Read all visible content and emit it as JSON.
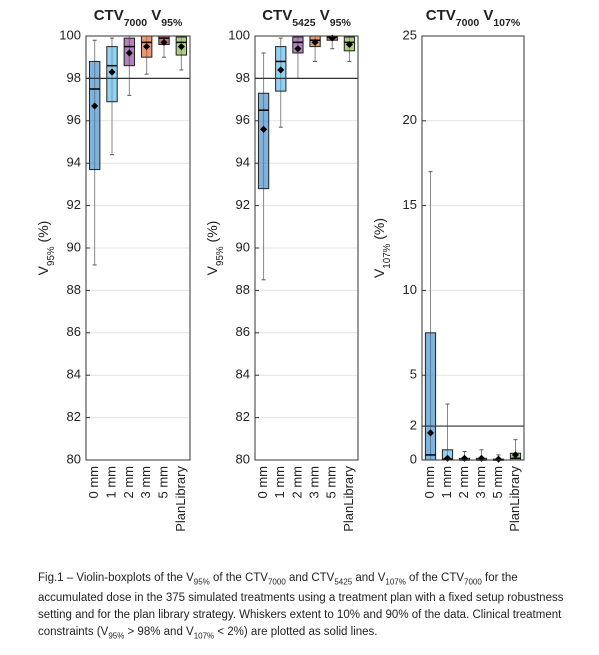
{
  "chart_data": [
    {
      "type": "box",
      "title": [
        "CTV",
        "7000",
        " V",
        "95%"
      ],
      "ylabel": [
        "V",
        "95%",
        " (%)"
      ],
      "categories": [
        "0 mm",
        "1 mm",
        "2 mm",
        "3 mm",
        "5 mm",
        "PlanLibrary"
      ],
      "colors": [
        "#2f7fc1",
        "#4db3e6",
        "#7e2f8e",
        "#d95319",
        "#a2142f",
        "#77ac30"
      ],
      "whislo": [
        89.2,
        94.4,
        97.2,
        98.2,
        99.0,
        98.4
      ],
      "q1": [
        93.7,
        96.9,
        98.6,
        99.0,
        99.6,
        99.1
      ],
      "median": [
        97.5,
        98.6,
        99.5,
        99.7,
        99.9,
        99.7
      ],
      "q3": [
        98.8,
        99.5,
        99.9,
        100,
        100,
        99.95
      ],
      "whishi": [
        99.8,
        99.9,
        100,
        100,
        100,
        100
      ],
      "mean": [
        96.7,
        98.3,
        99.2,
        99.5,
        99.7,
        99.5
      ],
      "hline": 98,
      "ylim": [
        80,
        100
      ],
      "yticks": [
        80,
        82,
        84,
        86,
        88,
        90,
        92,
        94,
        96,
        98,
        100
      ],
      "grid": true
    },
    {
      "type": "box",
      "title": [
        "CTV",
        "5425",
        " V",
        "95%"
      ],
      "ylabel": [
        "V",
        "95%",
        " (%)"
      ],
      "categories": [
        "0 mm",
        "1 mm",
        "2 mm",
        "3 mm",
        "5 mm",
        "PlanLibrary"
      ],
      "colors": [
        "#2f7fc1",
        "#4db3e6",
        "#7e2f8e",
        "#d95319",
        "#a2142f",
        "#77ac30"
      ],
      "whislo": [
        88.5,
        95.7,
        98.0,
        98.8,
        99.4,
        98.8
      ],
      "q1": [
        92.8,
        97.4,
        99.2,
        99.5,
        99.8,
        99.3
      ],
      "median": [
        96.5,
        98.8,
        99.7,
        99.8,
        99.95,
        99.7
      ],
      "q3": [
        97.3,
        99.5,
        99.95,
        100,
        100,
        99.95
      ],
      "whishi": [
        99.2,
        99.9,
        100,
        100,
        100,
        100
      ],
      "mean": [
        95.6,
        98.4,
        99.4,
        99.7,
        99.9,
        99.6
      ],
      "hline": 98,
      "ylim": [
        80,
        100
      ],
      "yticks": [
        80,
        82,
        84,
        86,
        88,
        90,
        92,
        94,
        96,
        98,
        100
      ],
      "grid": true
    },
    {
      "type": "box",
      "title": [
        "CTV",
        "7000",
        " V",
        "107%"
      ],
      "ylabel": [
        "V",
        "107%",
        " (%)"
      ],
      "categories": [
        "0 mm",
        "1 mm",
        "2 mm",
        "3 mm",
        "5 mm",
        "PlanLibrary"
      ],
      "colors": [
        "#2f7fc1",
        "#4db3e6",
        "#7e2f8e",
        "#d95319",
        "#a2142f",
        "#77ac30"
      ],
      "whislo": [
        0,
        0,
        0,
        0,
        0,
        0
      ],
      "q1": [
        0,
        0,
        0,
        0,
        0,
        0
      ],
      "median": [
        0.3,
        0.05,
        0,
        0,
        0,
        0.1
      ],
      "q3": [
        7.5,
        0.6,
        0.1,
        0.1,
        0.05,
        0.4
      ],
      "whishi": [
        17,
        3.3,
        0.5,
        0.6,
        0.3,
        1.2
      ],
      "mean": [
        1.6,
        0.1,
        0.1,
        0.1,
        0.05,
        0.3
      ],
      "hline": 2,
      "ylim": [
        0,
        25
      ],
      "yticks": [
        0,
        2,
        5,
        10,
        15,
        20,
        25
      ],
      "grid": true
    }
  ],
  "caption": [
    "Fig.1 – Violin-boxplots of the V",
    "95%",
    " of the CTV",
    "7000",
    " and CTV",
    "5425",
    " and V",
    "107%",
    " of the CTV",
    "7000",
    " for the accumulated dose in the 375 simulated treatments using a treatment plan with a fixed setup robustness setting and for the plan library strategy. Whiskers extent to 10% and 90% of the data. Clinical treatment constraints (V",
    "95%",
    " > 98% and V",
    "107%",
    " < 2%) are plotted as solid lines."
  ]
}
